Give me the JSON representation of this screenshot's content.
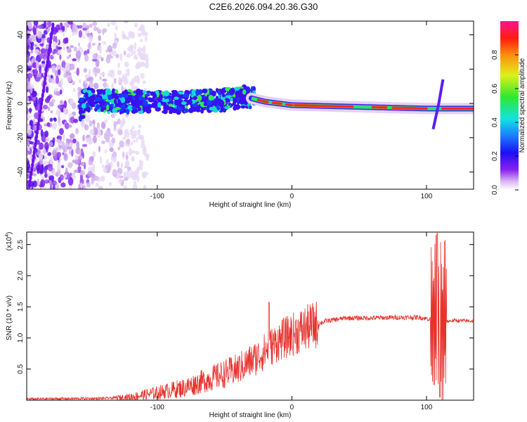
{
  "title": "C2E6.2026.094.20.36.G30",
  "colors": {
    "snr_line": "#e8312c",
    "frame": "#000000"
  },
  "chart_data": [
    {
      "type": "heatmap",
      "name": "spectrogram",
      "xlabel": "Height of straight line (km)",
      "ylabel": "Frequency (Hz)",
      "xlim": [
        -197,
        135
      ],
      "ylim": [
        -50,
        48
      ],
      "xticks": [
        -100,
        0,
        100
      ],
      "yticks": [
        -40,
        -20,
        0,
        20,
        40
      ],
      "colorbar": {
        "label": "Normalized spectral amplitude",
        "range": [
          0,
          1
        ],
        "ticks": [
          "0.0",
          "0.2",
          "0.4",
          "0.6",
          "0.8"
        ],
        "tick_values": [
          0.0,
          0.2,
          0.4,
          0.6,
          0.8
        ]
      },
      "ridge": [
        {
          "x": -155,
          "y": 2
        },
        {
          "x": -120,
          "y": 1
        },
        {
          "x": -80,
          "y": 1
        },
        {
          "x": -50,
          "y": 2
        },
        {
          "x": -35,
          "y": 4
        },
        {
          "x": -20,
          "y": 1
        },
        {
          "x": 0,
          "y": -1
        },
        {
          "x": 50,
          "y": -2
        },
        {
          "x": 100,
          "y": -3
        },
        {
          "x": 135,
          "y": -3
        }
      ],
      "spike": {
        "x": 106,
        "ylow": -15,
        "yhigh": 14
      }
    },
    {
      "type": "line",
      "name": "snr",
      "xlabel": "Height of straight line (km)",
      "ylabel": "SNR (10 * v/v)",
      "scale_label": "(x10",
      "scale_exponent": "4",
      "xlim": [
        -197,
        135
      ],
      "ylim": [
        0,
        2.7
      ],
      "xticks": [
        -100,
        0,
        100
      ],
      "yticks": [
        "0.5",
        "1.0",
        "1.5",
        "2.0",
        "2.5"
      ],
      "ytick_values": [
        0.5,
        1.0,
        1.5,
        2.0,
        2.5
      ],
      "series": [
        {
          "name": "SNR",
          "envelope": [
            {
              "x": -197,
              "y": 0.02
            },
            {
              "x": -140,
              "y": 0.03
            },
            {
              "x": -120,
              "y": 0.05
            },
            {
              "x": -100,
              "y": 0.12
            },
            {
              "x": -80,
              "y": 0.2
            },
            {
              "x": -60,
              "y": 0.35
            },
            {
              "x": -40,
              "y": 0.5
            },
            {
              "x": -25,
              "y": 0.7
            },
            {
              "x": -10,
              "y": 0.95
            },
            {
              "x": 10,
              "y": 1.15
            },
            {
              "x": 25,
              "y": 1.27
            },
            {
              "x": 40,
              "y": 1.32
            },
            {
              "x": 60,
              "y": 1.32
            },
            {
              "x": 80,
              "y": 1.33
            },
            {
              "x": 95,
              "y": 1.33
            },
            {
              "x": 103,
              "y": 1.3
            },
            {
              "x": 110,
              "y": 1.25
            },
            {
              "x": 120,
              "y": 1.28
            },
            {
              "x": 135,
              "y": 1.27
            }
          ],
          "peaks": [
            {
              "x": -17,
              "y": 1.57
            },
            {
              "x": 108,
              "y": 2.68
            },
            {
              "x": 110,
              "y": 0.05
            }
          ]
        }
      ]
    }
  ]
}
